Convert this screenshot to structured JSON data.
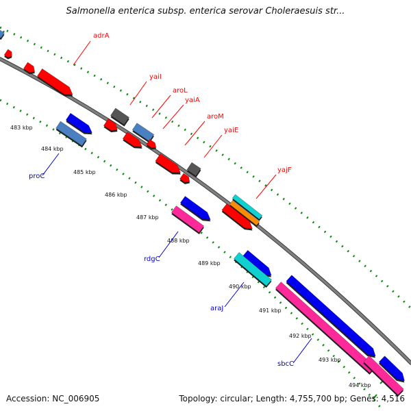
{
  "title": "Salmonella enterica subsp. enterica serovar Choleraesuis str...",
  "footer": {
    "accession": "Accession: NC_006905",
    "summary": "Topology: circular; Length: 4,755,700 bp; Genes: 4,516"
  },
  "colors": {
    "backbone": "#808080",
    "tick_dot": "#0a8a0a",
    "label_red": "#ff0000",
    "label_blue": "#0000cc",
    "gene_red": "#ff0000",
    "gene_blue": "#0000ee",
    "gene_steelblue": "#4a7fc0",
    "gene_gray": "#555555",
    "gene_magenta": "#ff2a9a",
    "gene_cyan": "#10d0d0",
    "gene_orange": "#ff8c00"
  },
  "scale_labels": [
    "483 kbp",
    "484 kbp",
    "485 kbp",
    "486 kbp",
    "487 kbp",
    "488 kbp",
    "489 kbp",
    "490 kbp",
    "491 kbp",
    "492 kbp",
    "493 kbp",
    "494 kbp"
  ],
  "gene_labels": [
    {
      "name": "adrA",
      "color": "red"
    },
    {
      "name": "yaiI",
      "color": "red"
    },
    {
      "name": "aroL",
      "color": "red"
    },
    {
      "name": "yaiA",
      "color": "red"
    },
    {
      "name": "aroM",
      "color": "red"
    },
    {
      "name": "yaiE",
      "color": "red"
    },
    {
      "name": "yajF",
      "color": "red"
    },
    {
      "name": "proC",
      "color": "blue"
    },
    {
      "name": "rdgC",
      "color": "blue"
    },
    {
      "name": "araJ",
      "color": "blue"
    },
    {
      "name": "sbcC",
      "color": "blue"
    }
  ]
}
